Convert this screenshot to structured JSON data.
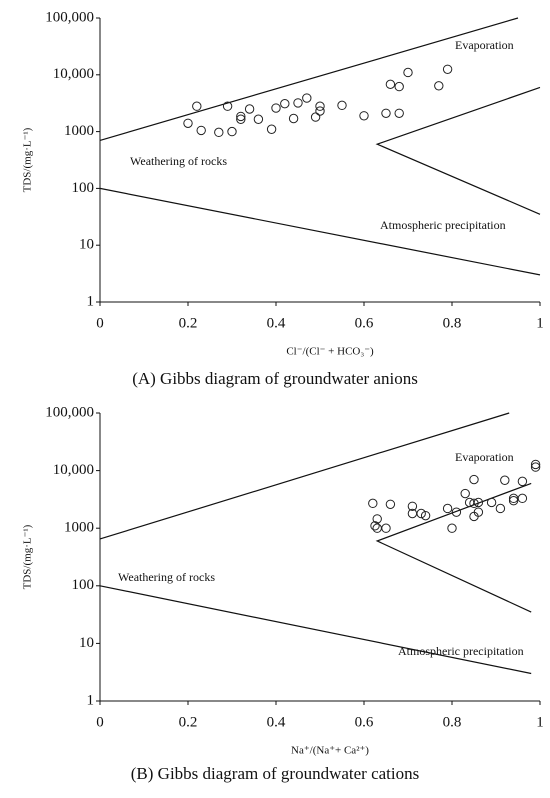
{
  "chart_data": [
    {
      "type": "scatter",
      "log_y": true,
      "color": "#222",
      "ylabel": "TDS/(mg·L⁻¹)",
      "xlabel": "Cl⁻/(Cl⁻ + HCO₃⁻)",
      "caption": "(A) Gibbs diagram of groundwater anions",
      "annotations": [
        "Evaporation",
        "Weathering of rocks",
        "Atmospheric precipitation"
      ],
      "xlim": [
        0,
        1
      ],
      "xticks": [
        0,
        0.2,
        0.4,
        0.6,
        0.8,
        1
      ],
      "ylim": [
        1,
        100000
      ],
      "yticks": [
        1,
        10,
        100,
        1000,
        {
          "value": 10000,
          "label": "10,000"
        },
        {
          "value": 100000,
          "label": "100,000"
        }
      ],
      "x": [
        0.2,
        0.22,
        0.23,
        0.27,
        0.29,
        0.3,
        0.32,
        0.32,
        0.34,
        0.36,
        0.39,
        0.4,
        0.42,
        0.44,
        0.45,
        0.47,
        0.49,
        0.5,
        0.5,
        0.55,
        0.6,
        0.65,
        0.66,
        0.68,
        0.68,
        0.7,
        0.77,
        0.79
      ],
      "values": [
        1400,
        2800,
        1050,
        970,
        2800,
        1000,
        1850,
        1650,
        2500,
        1650,
        1100,
        2600,
        3100,
        1700,
        3200,
        3900,
        1800,
        2300,
        2800,
        2900,
        1900,
        2100,
        6800,
        6200,
        2100,
        11000,
        6400,
        12500
      ],
      "boundaries": [
        {
          "x": [
            0,
            0.95
          ],
          "y": [
            700,
            100000
          ]
        },
        {
          "x": [
            0,
            1
          ],
          "y": [
            100,
            3
          ]
        },
        {
          "x": [
            1,
            0.63,
            1
          ],
          "y": [
            6000,
            600,
            35
          ]
        }
      ]
    },
    {
      "type": "scatter",
      "log_y": true,
      "color": "#222",
      "ylabel": "TDS/(mg·L⁻¹)",
      "xlabel": "Na⁺/(Na⁺+ Ca²⁺)",
      "caption": "(B) Gibbs diagram of groundwater cations",
      "annotations": [
        "Evaporation",
        "Weathering of rocks",
        "Atmospheric precipitation"
      ],
      "xlim": [
        0,
        1
      ],
      "xticks": [
        0,
        0.2,
        0.4,
        0.6,
        0.8,
        1
      ],
      "ylim": [
        1,
        100000
      ],
      "yticks": [
        1,
        10,
        100,
        1000,
        {
          "value": 10000,
          "label": "10,000"
        },
        {
          "value": 100000,
          "label": "100,000"
        }
      ],
      "x": [
        0.62,
        0.625,
        0.63,
        0.63,
        0.65,
        0.66,
        0.71,
        0.71,
        0.73,
        0.74,
        0.79,
        0.8,
        0.81,
        0.83,
        0.84,
        0.85,
        0.85,
        0.85,
        0.86,
        0.86,
        0.89,
        0.91,
        0.92,
        0.94,
        0.94,
        0.96,
        0.96,
        0.99,
        0.99
      ],
      "values": [
        2700,
        1100,
        1450,
        1000,
        1000,
        2600,
        2400,
        1800,
        1800,
        1650,
        2200,
        1000,
        1900,
        4000,
        2800,
        1600,
        7000,
        2700,
        1900,
        2800,
        2800,
        2200,
        6800,
        3000,
        3300,
        3300,
        6500,
        11500,
        12800
      ],
      "boundaries": [
        {
          "x": [
            0,
            0.93
          ],
          "y": [
            650,
            100000
          ]
        },
        {
          "x": [
            0,
            0.98
          ],
          "y": [
            100,
            3
          ]
        },
        {
          "x": [
            0.98,
            0.63,
            0.98
          ],
          "y": [
            6000,
            600,
            35
          ]
        }
      ]
    }
  ]
}
